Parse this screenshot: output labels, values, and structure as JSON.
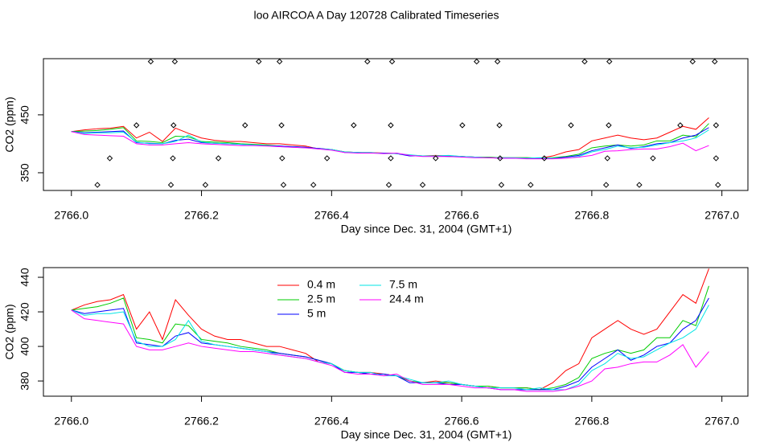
{
  "title": "loo AIRCOA A  Day 120728  Calibrated Timeseries",
  "chart_data": [
    {
      "type": "line",
      "ylabel": "CO2 (ppm)",
      "xlabel": "Day since Dec. 31, 2004 (GMT+1)",
      "xlim": [
        2765.957,
        2767.04
      ],
      "ylim": [
        319.4,
        547
      ],
      "xticks": [
        {
          "value": 2766,
          "label": "2766.0"
        },
        {
          "value": 2766.2,
          "label": "2766.2"
        },
        {
          "value": 2766.4,
          "label": "2766.4"
        },
        {
          "value": 2766.6,
          "label": "2766.6"
        },
        {
          "value": 2766.8,
          "label": "2766.8"
        },
        {
          "value": 2767,
          "label": "2767.0"
        }
      ],
      "yticks": [
        350,
        450
      ],
      "x": [
        2766,
        2766.02,
        2766.04,
        2766.06,
        2766.08,
        2766.1,
        2766.12,
        2766.14,
        2766.16,
        2766.18,
        2766.2,
        2766.22,
        2766.24,
        2766.26,
        2766.28,
        2766.3,
        2766.32,
        2766.34,
        2766.36,
        2766.38,
        2766.4,
        2766.42,
        2766.44,
        2766.46,
        2766.48,
        2766.5,
        2766.52,
        2766.54,
        2766.56,
        2766.58,
        2766.6,
        2766.62,
        2766.64,
        2766.66,
        2766.68,
        2766.7,
        2766.72,
        2766.74,
        2766.76,
        2766.78,
        2766.8,
        2766.82,
        2766.84,
        2766.86,
        2766.88,
        2766.9,
        2766.92,
        2766.94,
        2766.96,
        2766.98
      ],
      "series": [
        {
          "color": "#ff0000",
          "values": [
            421,
            424,
            426,
            427,
            430,
            410,
            420,
            404,
            427,
            418,
            410,
            406,
            404,
            404,
            402,
            400,
            400,
            398,
            396,
            391,
            390,
            386,
            385,
            385,
            384,
            383,
            380,
            379,
            380,
            379,
            378,
            377,
            377,
            376,
            376,
            376,
            375,
            379,
            386,
            390,
            405,
            410,
            415,
            410,
            407,
            410,
            420,
            430,
            425,
            445
          ]
        },
        {
          "color": "#00cc00",
          "values": [
            421,
            422,
            423,
            425,
            428,
            405,
            404,
            402,
            413,
            412,
            404,
            403,
            402,
            400,
            399,
            398,
            396,
            395,
            394,
            392,
            390,
            386,
            385,
            384,
            384,
            383,
            380,
            379,
            379,
            379,
            378,
            377,
            377,
            376,
            376,
            376,
            375,
            376,
            378,
            382,
            393,
            396,
            398,
            396,
            398,
            405,
            405,
            415,
            412,
            435
          ]
        },
        {
          "color": "#0000ff",
          "values": [
            421,
            419,
            420,
            421,
            422,
            402,
            401,
            400,
            406,
            408,
            402,
            401,
            400,
            399,
            398,
            397,
            396,
            395,
            394,
            392,
            390,
            385,
            385,
            384,
            384,
            383,
            379,
            379,
            379,
            378,
            378,
            377,
            376,
            375,
            375,
            375,
            375,
            375,
            377,
            380,
            388,
            393,
            398,
            392,
            395,
            400,
            402,
            410,
            415,
            428
          ]
        },
        {
          "color": "#00e5e5",
          "values": [
            421,
            418,
            419,
            419,
            420,
            403,
            400,
            400,
            404,
            415,
            403,
            401,
            400,
            399,
            398,
            397,
            395,
            394,
            393,
            391,
            390,
            386,
            385,
            385,
            383,
            383,
            381,
            379,
            379,
            380,
            378,
            377,
            376,
            376,
            376,
            375,
            376,
            375,
            375,
            378,
            386,
            390,
            396,
            393,
            394,
            398,
            402,
            405,
            410,
            424
          ]
        },
        {
          "color": "#ff00ff",
          "values": [
            421,
            416,
            415,
            414,
            413,
            400,
            398,
            398,
            400,
            402,
            400,
            399,
            398,
            397,
            397,
            396,
            395,
            394,
            393,
            391,
            389,
            385,
            384,
            384,
            383,
            384,
            380,
            378,
            378,
            378,
            377,
            376,
            376,
            375,
            375,
            374,
            374,
            374,
            375,
            377,
            380,
            387,
            388,
            390,
            391,
            391,
            395,
            401,
            388,
            397
          ]
        }
      ],
      "points": {
        "color": "#000000",
        "x": [
          2766.122,
          2766.159,
          2766.288,
          2766.32,
          2766.455,
          2766.493,
          2766.623,
          2766.655,
          2766.789,
          2766.827,
          2766.955,
          2766.989,
          2766.1,
          2766.157,
          2766.267,
          2766.323,
          2766.434,
          2766.491,
          2766.601,
          2766.658,
          2766.768,
          2766.826,
          2766.936,
          2766.991,
          2766.059,
          2766.156,
          2766.226,
          2766.324,
          2766.393,
          2766.491,
          2766.56,
          2766.659,
          2766.727,
          2766.824,
          2766.894,
          2766.991,
          2766.04,
          2766.153,
          2766.206,
          2766.326,
          2766.372,
          2766.488,
          2766.54,
          2766.661,
          2766.706,
          2766.822,
          2766.873,
          2766.994
        ],
        "values": [
          542,
          542,
          542,
          542,
          542,
          542,
          542,
          542,
          542,
          542,
          542,
          542,
          432,
          432,
          432,
          432,
          432,
          432,
          432,
          432,
          432,
          432,
          432,
          432,
          375,
          375,
          375,
          375,
          375,
          375,
          375,
          375,
          375,
          375,
          375,
          375,
          329,
          329,
          329,
          329,
          329,
          329,
          329,
          329,
          329,
          329,
          329,
          329
        ]
      }
    },
    {
      "type": "line",
      "ylabel": "CO2 (ppm)",
      "xlabel": "Day since Dec. 31, 2004 (GMT+1)",
      "xlim": [
        2765.957,
        2767.04
      ],
      "ylim": [
        371.2,
        445.6
      ],
      "xticks": [
        {
          "value": 2766,
          "label": "2766.0"
        },
        {
          "value": 2766.2,
          "label": "2766.2"
        },
        {
          "value": 2766.4,
          "label": "2766.4"
        },
        {
          "value": 2766.6,
          "label": "2766.6"
        },
        {
          "value": 2766.8,
          "label": "2766.8"
        },
        {
          "value": 2767,
          "label": "2767.0"
        }
      ],
      "yticks": [
        380,
        400,
        420,
        440
      ],
      "legend": "top",
      "x": [
        2766,
        2766.02,
        2766.04,
        2766.06,
        2766.08,
        2766.1,
        2766.12,
        2766.14,
        2766.16,
        2766.18,
        2766.2,
        2766.22,
        2766.24,
        2766.26,
        2766.28,
        2766.3,
        2766.32,
        2766.34,
        2766.36,
        2766.38,
        2766.4,
        2766.42,
        2766.44,
        2766.46,
        2766.48,
        2766.5,
        2766.52,
        2766.54,
        2766.56,
        2766.58,
        2766.6,
        2766.62,
        2766.64,
        2766.66,
        2766.68,
        2766.7,
        2766.72,
        2766.74,
        2766.76,
        2766.78,
        2766.8,
        2766.82,
        2766.84,
        2766.86,
        2766.88,
        2766.9,
        2766.92,
        2766.94,
        2766.96,
        2766.98
      ],
      "series": [
        {
          "name": "0.4 m",
          "color": "#ff0000",
          "values": [
            421,
            424,
            426,
            427,
            430,
            410,
            420,
            404,
            427,
            418,
            410,
            406,
            404,
            404,
            402,
            400,
            400,
            398,
            396,
            391,
            390,
            386,
            385,
            385,
            384,
            383,
            380,
            379,
            380,
            379,
            378,
            377,
            377,
            376,
            376,
            376,
            375,
            379,
            386,
            390,
            405,
            410,
            415,
            410,
            407,
            410,
            420,
            430,
            425,
            445
          ]
        },
        {
          "name": "2.5 m",
          "color": "#00cc00",
          "values": [
            421,
            422,
            423,
            425,
            428,
            405,
            404,
            402,
            413,
            412,
            404,
            403,
            402,
            400,
            399,
            398,
            396,
            395,
            394,
            392,
            390,
            386,
            385,
            384,
            384,
            383,
            380,
            379,
            379,
            379,
            378,
            377,
            377,
            376,
            376,
            376,
            375,
            376,
            378,
            382,
            393,
            396,
            398,
            396,
            398,
            405,
            405,
            415,
            412,
            435
          ]
        },
        {
          "name": "5 m",
          "color": "#0000ff",
          "values": [
            421,
            419,
            420,
            421,
            422,
            402,
            401,
            400,
            406,
            408,
            402,
            401,
            400,
            399,
            398,
            397,
            396,
            395,
            394,
            392,
            390,
            385,
            385,
            384,
            384,
            383,
            379,
            379,
            379,
            378,
            378,
            377,
            376,
            375,
            375,
            375,
            375,
            375,
            377,
            380,
            388,
            393,
            398,
            392,
            395,
            400,
            402,
            410,
            415,
            428
          ]
        },
        {
          "name": "7.5 m",
          "color": "#00e5e5",
          "values": [
            421,
            418,
            419,
            419,
            420,
            403,
            400,
            400,
            404,
            415,
            403,
            401,
            400,
            399,
            398,
            397,
            395,
            394,
            393,
            391,
            390,
            386,
            385,
            385,
            383,
            383,
            381,
            379,
            379,
            380,
            378,
            377,
            376,
            376,
            376,
            375,
            376,
            375,
            375,
            378,
            386,
            390,
            396,
            393,
            394,
            398,
            402,
            405,
            410,
            424
          ]
        },
        {
          "name": "24.4 m",
          "color": "#ff00ff",
          "values": [
            421,
            416,
            415,
            414,
            413,
            400,
            398,
            398,
            400,
            402,
            400,
            399,
            398,
            397,
            397,
            396,
            395,
            394,
            393,
            391,
            389,
            385,
            384,
            384,
            383,
            384,
            380,
            378,
            378,
            378,
            377,
            376,
            376,
            375,
            375,
            374,
            374,
            374,
            375,
            377,
            380,
            387,
            388,
            390,
            391,
            391,
            395,
            401,
            388,
            397
          ]
        }
      ]
    }
  ]
}
